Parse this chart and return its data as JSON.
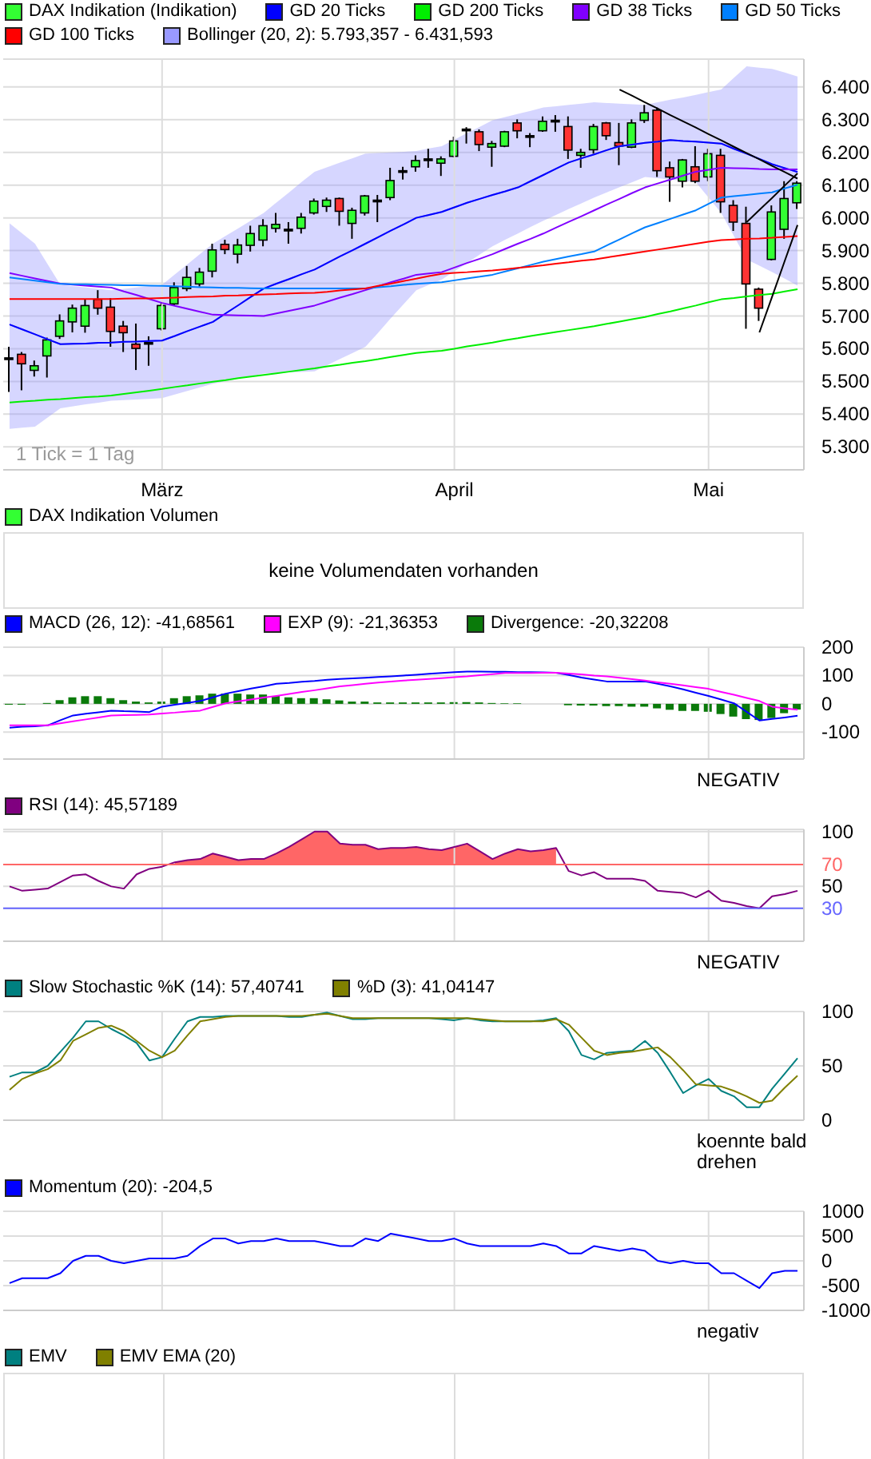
{
  "chart_data": [
    {
      "type": "candlestick",
      "categories": [
        null,
        null,
        null,
        null,
        null,
        null,
        null,
        null,
        null,
        null,
        null,
        null,
        "März",
        null,
        null,
        null,
        null,
        null,
        null,
        null,
        null,
        null,
        null,
        null,
        null,
        null,
        null,
        null,
        null,
        null,
        null,
        null,
        null,
        null,
        null,
        "April",
        null,
        null,
        null,
        null,
        null,
        null,
        null,
        null,
        null,
        null,
        null,
        null,
        null,
        null,
        null,
        null,
        null,
        null,
        null,
        "Mai",
        null,
        null,
        null,
        null,
        null,
        null,
        null
      ],
      "ylim": [
        5230,
        6485
      ],
      "yticks": [
        {
          "value": 5300,
          "label": "5.300"
        },
        {
          "value": 5400,
          "label": "5.400"
        },
        {
          "value": 5500,
          "label": "5.500"
        },
        {
          "value": 5600,
          "label": "5.600"
        },
        {
          "value": 5700,
          "label": "5.700"
        },
        {
          "value": 5800,
          "label": "5.800"
        },
        {
          "value": 5900,
          "label": "5.900"
        },
        {
          "value": 6000,
          "label": "6.000"
        },
        {
          "value": 6100,
          "label": "6.100"
        },
        {
          "value": 6200,
          "label": "6.200"
        },
        {
          "value": 6300,
          "label": "6.300"
        },
        {
          "value": 6400,
          "label": "6.400"
        }
      ],
      "grid": true,
      "legend": "top",
      "annotations": [
        "1 Tick = 1 Tag"
      ],
      "series": [
        {
          "type": "candlestick",
          "name": "DAX Indikation (Indikation)",
          "color": "#33ff33",
          "ohlc": [
            [
              5572,
              5606,
              5468,
              5572
            ],
            [
              5583,
              5590,
              5473,
              5554
            ],
            [
              5534,
              5564,
              5515,
              5548
            ],
            [
              5578,
              5634,
              5512,
              5627
            ],
            [
              5638,
              5705,
              5630,
              5685
            ],
            [
              5682,
              5735,
              5650,
              5724
            ],
            [
              5669,
              5751,
              5649,
              5732
            ],
            [
              5751,
              5779,
              5704,
              5724
            ],
            [
              5727,
              5755,
              5606,
              5653
            ],
            [
              5669,
              5685,
              5590,
              5649
            ],
            [
              5614,
              5677,
              5535,
              5601
            ],
            [
              5619,
              5638,
              5548,
              5619
            ],
            [
              5661,
              5740,
              5656,
              5732
            ],
            [
              5737,
              5803,
              5732,
              5787
            ],
            [
              5784,
              5853,
              5776,
              5818
            ],
            [
              5798,
              5847,
              5790,
              5834
            ],
            [
              5837,
              5921,
              5818,
              5902
            ],
            [
              5919,
              5933,
              5889,
              5903
            ],
            [
              5889,
              5936,
              5861,
              5917
            ],
            [
              5916,
              5976,
              5897,
              5952
            ],
            [
              5932,
              5996,
              5913,
              5976
            ],
            [
              5968,
              6015,
              5955,
              5980
            ],
            [
              5965,
              5987,
              5921,
              5965
            ],
            [
              5968,
              6015,
              5952,
              6002
            ],
            [
              6015,
              6059,
              6010,
              6051
            ],
            [
              6035,
              6062,
              6018,
              6054
            ],
            [
              6059,
              6062,
              5976,
              6020
            ],
            [
              5983,
              6031,
              5936,
              6023
            ],
            [
              6015,
              6070,
              6007,
              6067
            ],
            [
              6054,
              6070,
              5987,
              6054
            ],
            [
              6062,
              6153,
              6054,
              6114
            ],
            [
              6144,
              6156,
              6117,
              6144
            ],
            [
              6156,
              6191,
              6141,
              6175
            ],
            [
              6180,
              6211,
              6153,
              6180
            ],
            [
              6167,
              6188,
              6128,
              6180
            ],
            [
              6188,
              6248,
              6185,
              6235
            ],
            [
              6271,
              6277,
              6227,
              6271
            ],
            [
              6263,
              6270,
              6204,
              6224
            ],
            [
              6216,
              6235,
              6156,
              6227
            ],
            [
              6219,
              6266,
              6216,
              6263
            ],
            [
              6290,
              6301,
              6243,
              6266
            ],
            [
              6251,
              6259,
              6216,
              6251
            ],
            [
              6266,
              6310,
              6263,
              6295
            ],
            [
              6298,
              6314,
              6263,
              6298
            ],
            [
              6279,
              6310,
              6180,
              6207
            ],
            [
              6191,
              6211,
              6153,
              6200
            ],
            [
              6208,
              6287,
              6196,
              6279
            ],
            [
              6290,
              6293,
              6238,
              6251
            ],
            [
              6230,
              6290,
              6161,
              6219
            ],
            [
              6216,
              6301,
              6213,
              6290
            ],
            [
              6298,
              6345,
              6290,
              6321
            ],
            [
              6329,
              6337,
              6125,
              6144
            ],
            [
              6153,
              6172,
              6049,
              6125
            ],
            [
              6112,
              6180,
              6093,
              6177
            ],
            [
              6156,
              6219,
              6106,
              6112
            ],
            [
              6125,
              6211,
              6112,
              6196
            ],
            [
              6191,
              6211,
              6015,
              6049
            ],
            [
              6038,
              6054,
              5960,
              5987
            ],
            [
              5983,
              6034,
              5661,
              5798
            ],
            [
              5782,
              5787,
              5685,
              5724
            ],
            [
              5873,
              6038,
              5870,
              6018
            ],
            [
              5965,
              6112,
              5936,
              6059
            ],
            [
              6046,
              6112,
              6027,
              6106
            ]
          ],
          "colors": [
            "#000000",
            "#ff3333",
            "#33ff33",
            "#33ff33",
            "#33ff33",
            "#33ff33",
            "#33ff33",
            "#ff3333",
            "#ff3333",
            "#ff3333",
            "#ff3333",
            "#000000",
            "#33ff33",
            "#33ff33",
            "#33ff33",
            "#33ff33",
            "#33ff33",
            "#ff3333",
            "#33ff33",
            "#33ff33",
            "#33ff33",
            "#33ff33",
            "#000000",
            "#33ff33",
            "#33ff33",
            "#33ff33",
            "#ff3333",
            "#33ff33",
            "#33ff33",
            "#000000",
            "#33ff33",
            "#000000",
            "#33ff33",
            "#000000",
            "#33ff33",
            "#33ff33",
            "#000000",
            "#ff3333",
            "#33ff33",
            "#33ff33",
            "#ff3333",
            "#000000",
            "#33ff33",
            "#000000",
            "#ff3333",
            "#33ff33",
            "#33ff33",
            "#ff3333",
            "#ff3333",
            "#33ff33",
            "#33ff33",
            "#ff3333",
            "#ff3333",
            "#33ff33",
            "#ff3333",
            "#33ff33",
            "#ff3333",
            "#ff3333",
            "#ff3333",
            "#ff3333",
            "#33ff33",
            "#33ff33",
            "#33ff33"
          ]
        },
        {
          "type": "line",
          "name": "GD 20 Ticks",
          "color": "#0000ff",
          "values": [
            5674,
            5659,
            5644,
            5629,
            5614,
            5615,
            5616,
            5618,
            5619,
            5621,
            5622,
            5624,
            5625,
            5639,
            5654,
            5668,
            5682,
            5708,
            5733,
            5759,
            5784,
            5799,
            5813,
            5828,
            5842,
            5862,
            5882,
            5901,
            5921,
            5941,
            5961,
            5980,
            6000,
            6009,
            6018,
            6032,
            6046,
            6058,
            6070,
            6081,
            6093,
            6112,
            6131,
            6150,
            6169,
            6182,
            6194,
            6207,
            6219,
            6224,
            6229,
            6233,
            6238,
            6235,
            6233,
            6230,
            6227,
            6211,
            6196,
            6180,
            6164,
            6152,
            6140
          ]
        },
        {
          "type": "line",
          "name": "GD 200 Ticks",
          "color": "#00ee00",
          "values": [
            5436,
            5439,
            5441,
            5444,
            5446,
            5449,
            5452,
            5454,
            5457,
            5462,
            5467,
            5472,
            5477,
            5483,
            5488,
            5494,
            5499,
            5504,
            5510,
            5515,
            5520,
            5525,
            5530,
            5535,
            5540,
            5546,
            5551,
            5557,
            5562,
            5568,
            5575,
            5581,
            5587,
            5591,
            5594,
            5600,
            5607,
            5613,
            5619,
            5626,
            5632,
            5639,
            5645,
            5651,
            5657,
            5663,
            5669,
            5676,
            5683,
            5690,
            5697,
            5706,
            5714,
            5723,
            5732,
            5742,
            5751,
            5755,
            5760,
            5764,
            5768,
            5775,
            5782
          ]
        },
        {
          "type": "line",
          "name": "GD 38 Ticks",
          "color": "#8000ff",
          "values": [
            5831,
            5823,
            5815,
            5807,
            5799,
            5796,
            5793,
            5790,
            5787,
            5775,
            5764,
            5752,
            5740,
            5731,
            5722,
            5713,
            5704,
            5703,
            5702,
            5701,
            5700,
            5708,
            5716,
            5724,
            5732,
            5744,
            5756,
            5767,
            5779,
            5791,
            5803,
            5814,
            5826,
            5830,
            5834,
            5848,
            5862,
            5875,
            5889,
            5905,
            5921,
            5936,
            5952,
            5970,
            5988,
            6005,
            6023,
            6041,
            6058,
            6076,
            6093,
            6105,
            6117,
            6129,
            6141,
            6147,
            6153,
            6152,
            6151,
            6149,
            6148,
            6148,
            6148
          ]
        },
        {
          "type": "line",
          "name": "GD 50 Ticks",
          "color": "#0080ff",
          "values": [
            5818,
            5813,
            5808,
            5803,
            5798,
            5797,
            5797,
            5796,
            5795,
            5794,
            5794,
            5793,
            5792,
            5791,
            5790,
            5788,
            5787,
            5786,
            5786,
            5785,
            5784,
            5784,
            5784,
            5784,
            5784,
            5784,
            5784,
            5784,
            5784,
            5788,
            5791,
            5795,
            5798,
            5801,
            5803,
            5809,
            5815,
            5820,
            5826,
            5836,
            5846,
            5856,
            5866,
            5874,
            5882,
            5889,
            5897,
            5916,
            5934,
            5953,
            5971,
            5984,
            5997,
            6010,
            6023,
            6043,
            6062,
            6066,
            6070,
            6074,
            6078,
            6090,
            6101
          ]
        },
        {
          "type": "line",
          "name": "GD 100 Ticks",
          "color": "#ff0000",
          "values": [
            5752,
            5752,
            5752,
            5752,
            5752,
            5752,
            5752,
            5752,
            5752,
            5753,
            5754,
            5754,
            5755,
            5756,
            5758,
            5759,
            5760,
            5762,
            5763,
            5765,
            5766,
            5767,
            5769,
            5770,
            5771,
            5774,
            5778,
            5781,
            5784,
            5792,
            5799,
            5807,
            5814,
            5822,
            5829,
            5832,
            5834,
            5837,
            5839,
            5843,
            5847,
            5851,
            5855,
            5860,
            5864,
            5869,
            5873,
            5879,
            5885,
            5891,
            5897,
            5903,
            5909,
            5915,
            5921,
            5927,
            5932,
            5934,
            5936,
            5937,
            5939,
            5942,
            5944
          ]
        },
        {
          "type": "line",
          "name": "Bollinger (20, 2): 5.793,357 - 6.431,593",
          "color": "#9999ff",
          "values": [
            5674,
            5659,
            5644,
            5629,
            5614,
            5615,
            5616,
            5618,
            5619,
            5621,
            5622,
            5624,
            5625,
            5639,
            5654,
            5668,
            5682,
            5708,
            5733,
            5759,
            5784,
            5799,
            5813,
            5828,
            5842,
            5862,
            5882,
            5901,
            5921,
            5941,
            5961,
            5980,
            6000,
            6009,
            6018,
            6032,
            6046,
            6058,
            6070,
            6081,
            6093,
            6112,
            6131,
            6150,
            6169,
            6182,
            6194,
            6207,
            6219,
            6224,
            6229,
            6233,
            6238,
            6235,
            6233,
            6230,
            6227,
            6211,
            6196,
            6180,
            6164,
            6152,
            6140
          ],
          "upper": [
            5983,
            5952,
            5921,
            5858,
            5795,
            5791,
            5787,
            5783,
            5779,
            5783,
            5787,
            5791,
            5795,
            5827,
            5858,
            5890,
            5921,
            5945,
            5968,
            5992,
            6015,
            6047,
            6078,
            6110,
            6141,
            6155,
            6169,
            6182,
            6196,
            6198,
            6200,
            6202,
            6204,
            6212,
            6219,
            6239,
            6259,
            6278,
            6298,
            6308,
            6318,
            6327,
            6337,
            6341,
            6345,
            6349,
            6353,
            6351,
            6349,
            6347,
            6345,
            6353,
            6361,
            6368,
            6376,
            6384,
            6392,
            6428,
            6463,
            6459,
            6455,
            6444,
            6432
          ],
          "lower": [
            5355,
            5359,
            5362,
            5390,
            5418,
            5424,
            5430,
            5435,
            5441,
            5443,
            5445,
            5447,
            5449,
            5460,
            5471,
            5482,
            5493,
            5501,
            5509,
            5516,
            5524,
            5526,
            5528,
            5529,
            5531,
            5550,
            5569,
            5587,
            5606,
            5649,
            5693,
            5736,
            5779,
            5795,
            5811,
            5837,
            5862,
            5888,
            5913,
            5933,
            5952,
            5972,
            5991,
            6009,
            6027,
            6044,
            6062,
            6078,
            6094,
            6109,
            6125,
            6121,
            6117,
            6113,
            6109,
            6062,
            6015,
            5944,
            5873,
            5854,
            5834,
            5814,
            5793
          ]
        },
        {
          "type": "line",
          "color": "#000000",
          "values": [
            null,
            null,
            null,
            null,
            null,
            null,
            null,
            null,
            null,
            null,
            null,
            null,
            null,
            null,
            null,
            null,
            null,
            null,
            null,
            null,
            null,
            null,
            null,
            null,
            null,
            null,
            null,
            null,
            null,
            null,
            null,
            null,
            null,
            null,
            null,
            null,
            null,
            null,
            null,
            null,
            null,
            null,
            null,
            null,
            null,
            null,
            null,
            null,
            6392,
            6373,
            6353,
            6334,
            6314,
            6295,
            6276,
            6256,
            6237,
            6217,
            6198,
            6179,
            6159,
            6140,
            6120
          ]
        },
        {
          "type": "line",
          "color": "#000000",
          "values": [
            null,
            null,
            null,
            null,
            null,
            null,
            null,
            null,
            null,
            null,
            null,
            null,
            null,
            null,
            null,
            null,
            null,
            null,
            null,
            null,
            null,
            null,
            null,
            null,
            null,
            null,
            null,
            null,
            null,
            null,
            null,
            null,
            null,
            null,
            null,
            null,
            null,
            null,
            null,
            null,
            null,
            null,
            null,
            null,
            null,
            null,
            null,
            null,
            null,
            null,
            null,
            null,
            null,
            null,
            null,
            null,
            null,
            null,
            null,
            5650,
            5759,
            5869,
            5978
          ]
        },
        {
          "type": "line",
          "color": "#000000",
          "values": [
            null,
            null,
            null,
            null,
            null,
            null,
            null,
            null,
            null,
            null,
            null,
            null,
            null,
            null,
            null,
            null,
            null,
            null,
            null,
            null,
            null,
            null,
            null,
            null,
            null,
            null,
            null,
            null,
            null,
            null,
            null,
            null,
            null,
            null,
            null,
            null,
            null,
            null,
            null,
            null,
            null,
            null,
            null,
            null,
            null,
            null,
            null,
            null,
            null,
            null,
            null,
            null,
            null,
            null,
            null,
            null,
            null,
            null,
            5987,
            6024,
            6061,
            6099,
            6136
          ]
        }
      ]
    },
    {
      "type": "other",
      "legend": "top",
      "series": [
        {
          "name": "DAX Indikation Volumen",
          "color": "#33ff33"
        }
      ],
      "annotations": [
        "keine Volumendaten vorhanden"
      ]
    },
    {
      "type": "line",
      "categories": [
        null,
        null,
        null,
        null,
        null,
        null,
        null,
        null,
        null,
        null,
        null,
        null,
        null,
        null,
        null,
        null,
        null,
        null,
        null,
        null,
        null,
        null,
        null,
        null,
        null,
        null,
        null,
        null,
        null,
        null,
        null,
        null,
        null,
        null,
        null,
        null,
        null,
        null,
        null,
        null,
        null,
        null,
        null,
        null,
        null,
        null,
        null,
        null,
        null,
        null,
        null,
        null,
        null,
        null,
        null,
        null,
        null,
        null,
        null,
        null,
        null,
        null,
        null
      ],
      "ylim": [
        -195,
        200
      ],
      "yticks": [
        -100,
        0,
        100,
        200
      ],
      "grid": true,
      "legend": "top",
      "tick_labels": "y",
      "annotations": [
        "NEGATIV"
      ],
      "series": [
        {
          "name": "MACD (26, 12): -41,68561",
          "color": "#0000ff",
          "values": [
            -84,
            -81,
            -79,
            -76,
            -58,
            -41,
            -35,
            -30,
            -24,
            -26,
            -27,
            -29,
            -10,
            -3,
            3,
            10,
            23,
            36,
            45,
            54,
            62,
            71,
            74,
            78,
            81,
            85,
            88,
            90,
            92,
            95,
            97,
            100,
            103,
            106,
            109,
            112,
            114,
            114,
            113,
            113,
            112,
            112,
            111,
            110,
            102,
            93,
            86,
            79,
            79,
            79,
            79,
            71,
            62,
            51,
            39,
            28,
            15,
            2,
            -28,
            -59,
            -53,
            -48,
            -42
          ]
        },
        {
          "name": "EXP (9): -21,36353",
          "color": "#ff00ff",
          "values": [
            -76,
            -76,
            -76,
            -76,
            -69,
            -62,
            -55,
            -48,
            -41,
            -40,
            -39,
            -38,
            -34,
            -31,
            -27,
            -24,
            -11,
            2,
            9,
            15,
            22,
            28,
            35,
            42,
            48,
            55,
            62,
            66,
            71,
            75,
            79,
            82,
            85,
            88,
            91,
            94,
            97,
            101,
            105,
            109,
            109,
            109,
            110,
            110,
            107,
            104,
            100,
            97,
            92,
            87,
            82,
            76,
            71,
            65,
            59,
            53,
            42,
            32,
            21,
            10,
            -10,
            -16,
            -21
          ]
        },
        {
          "type": "bar",
          "name": "Divergence: -20,32208",
          "color": "#0a7a0a",
          "values": [
            -3,
            -3,
            null,
            3,
            13,
            23,
            27,
            27,
            20,
            13,
            8,
            5,
            8,
            20,
            27,
            30,
            36,
            36,
            36,
            33,
            33,
            28,
            23,
            20,
            20,
            16,
            12,
            8,
            8,
            5,
            5,
            5,
            5,
            5,
            5,
            6,
            6,
            5,
            3,
            2,
            2,
            null,
            null,
            null,
            -5,
            -6,
            -6,
            -8,
            -8,
            -10,
            -10,
            -16,
            -21,
            -25,
            -25,
            -28,
            -36,
            -45,
            -54,
            -57,
            -50,
            -33,
            -20
          ]
        }
      ]
    },
    {
      "type": "line",
      "categories": [
        null,
        null,
        null,
        null,
        null,
        null,
        null,
        null,
        null,
        null,
        null,
        null,
        null,
        null,
        null,
        null,
        null,
        null,
        null,
        null,
        null,
        null,
        null,
        null,
        null,
        null,
        null,
        null,
        null,
        null,
        null,
        null,
        null,
        null,
        null,
        null,
        null,
        null,
        null,
        null,
        null,
        null,
        null,
        null,
        null,
        null,
        null,
        null,
        null,
        null,
        null,
        null,
        null,
        null,
        null,
        null,
        null,
        null,
        null,
        null,
        null,
        null,
        null
      ],
      "ylim": [
        0,
        102
      ],
      "yticks": [
        30,
        50,
        70,
        100
      ],
      "grid": true,
      "legend": "top",
      "tick_labels": "y",
      "annotations": [
        "NEGATIV"
      ],
      "ref_lines": [
        {
          "axis": "y",
          "value": 70,
          "color": "#ff6666"
        },
        {
          "axis": "y",
          "value": 30,
          "color": "#6666ff"
        }
      ],
      "series": [
        {
          "type": "line",
          "name": "RSI (14): 45,57189",
          "color": "#800080",
          "values": [
            50,
            46,
            47,
            48,
            54,
            60,
            61,
            55,
            50,
            48,
            61,
            66,
            68,
            72,
            74,
            75,
            80,
            77,
            74,
            75,
            75,
            80,
            86,
            93,
            100,
            100,
            89,
            88,
            88,
            84,
            85,
            85,
            86,
            84,
            83,
            86,
            89,
            82,
            75,
            80,
            84,
            82,
            83,
            85,
            64,
            60,
            63,
            57,
            57,
            57,
            55,
            46,
            45,
            44,
            40,
            46,
            37,
            35,
            32,
            30,
            41,
            43,
            46
          ]
        },
        {
          "type": "area",
          "color": "#ff6666",
          "values": [
            null,
            null,
            null,
            null,
            null,
            null,
            null,
            null,
            null,
            null,
            null,
            null,
            null,
            72,
            74,
            75,
            80,
            77,
            74,
            75,
            75,
            80,
            86,
            93,
            100,
            100,
            89,
            88,
            88,
            84,
            85,
            85,
            86,
            84,
            83,
            86,
            89,
            82,
            75,
            80,
            84,
            82,
            83,
            85,
            null,
            null,
            null,
            null,
            null,
            null,
            null,
            null,
            null,
            null,
            null,
            null,
            null,
            null,
            null,
            null,
            null,
            null,
            null
          ]
        }
      ]
    },
    {
      "type": "line",
      "categories": [
        null,
        null,
        null,
        null,
        null,
        null,
        null,
        null,
        null,
        null,
        null,
        null,
        null,
        null,
        null,
        null,
        null,
        null,
        null,
        null,
        null,
        null,
        null,
        null,
        null,
        null,
        null,
        null,
        null,
        null,
        null,
        null,
        null,
        null,
        null,
        null,
        null,
        null,
        null,
        null,
        null,
        null,
        null,
        null,
        null,
        null,
        null,
        null,
        null,
        null,
        null,
        null,
        null,
        null,
        null,
        null,
        null,
        null,
        null,
        null,
        null,
        null,
        null
      ],
      "ylim": [
        0,
        100
      ],
      "yticks": [
        0,
        50,
        100
      ],
      "grid": true,
      "legend": "top",
      "tick_labels": "y",
      "annotations": [
        "koennte bald drehen"
      ],
      "series": [
        {
          "name": "Slow Stochastic %K (14): 57,40741",
          "color": "#008080",
          "values": [
            40,
            44,
            44,
            50,
            63,
            76,
            91,
            91,
            84,
            78,
            71,
            55,
            58,
            75,
            91,
            95,
            95,
            96,
            96,
            96,
            96,
            96,
            95,
            95,
            97,
            99,
            96,
            93,
            93,
            94,
            94,
            94,
            94,
            94,
            93,
            92,
            94,
            92,
            91,
            91,
            91,
            91,
            92,
            94,
            82,
            60,
            56,
            62,
            63,
            64,
            73,
            62,
            44,
            25,
            32,
            38,
            27,
            22,
            12,
            12,
            29,
            43,
            57
          ]
        },
        {
          "name": "%D (3): 41,04147",
          "color": "#808000",
          "values": [
            28,
            38,
            43,
            47,
            55,
            73,
            79,
            85,
            87,
            82,
            73,
            64,
            58,
            64,
            78,
            91,
            93,
            95,
            96,
            96,
            96,
            96,
            96,
            96,
            97,
            98,
            96,
            94,
            94,
            94,
            94,
            94,
            94,
            94,
            94,
            94,
            94,
            93,
            92,
            91,
            91,
            91,
            91,
            93,
            88,
            76,
            64,
            60,
            62,
            63,
            65,
            67,
            58,
            46,
            33,
            32,
            31,
            27,
            22,
            16,
            18,
            30,
            41
          ]
        }
      ]
    },
    {
      "type": "line",
      "categories": [
        null,
        null,
        null,
        null,
        null,
        null,
        null,
        null,
        null,
        null,
        null,
        null,
        null,
        null,
        null,
        null,
        null,
        null,
        null,
        null,
        null,
        null,
        null,
        null,
        null,
        null,
        null,
        null,
        null,
        null,
        null,
        null,
        null,
        null,
        null,
        null,
        null,
        null,
        null,
        null,
        null,
        null,
        null,
        null,
        null,
        null,
        null,
        null,
        null,
        null,
        null,
        null,
        null,
        null,
        null,
        null,
        null,
        null,
        null,
        null,
        null,
        null,
        null
      ],
      "ylim": [
        -1000,
        1000
      ],
      "yticks": [
        -1000,
        -500,
        0,
        500,
        1000
      ],
      "grid": true,
      "legend": "top",
      "tick_labels": "y",
      "annotations": [
        "negativ"
      ],
      "series": [
        {
          "name": "Momentum (20): -204,5",
          "color": "#0000ff",
          "values": [
            -450,
            -350,
            -350,
            -350,
            -250,
            0,
            100,
            100,
            0,
            -50,
            0,
            50,
            50,
            50,
            100,
            300,
            450,
            450,
            350,
            400,
            400,
            450,
            400,
            400,
            400,
            350,
            300,
            300,
            450,
            400,
            550,
            500,
            450,
            400,
            400,
            450,
            350,
            300,
            300,
            300,
            300,
            300,
            350,
            300,
            150,
            150,
            300,
            250,
            200,
            250,
            200,
            0,
            -50,
            0,
            -50,
            -50,
            -250,
            -250,
            -400,
            -550,
            -250,
            -200,
            -200
          ]
        }
      ]
    },
    {
      "type": "other",
      "legend": "top",
      "series": [
        {
          "name": "EMV",
          "color": "#008080"
        },
        {
          "name": "EMV EMA (20)",
          "color": "#808000"
        }
      ]
    }
  ]
}
